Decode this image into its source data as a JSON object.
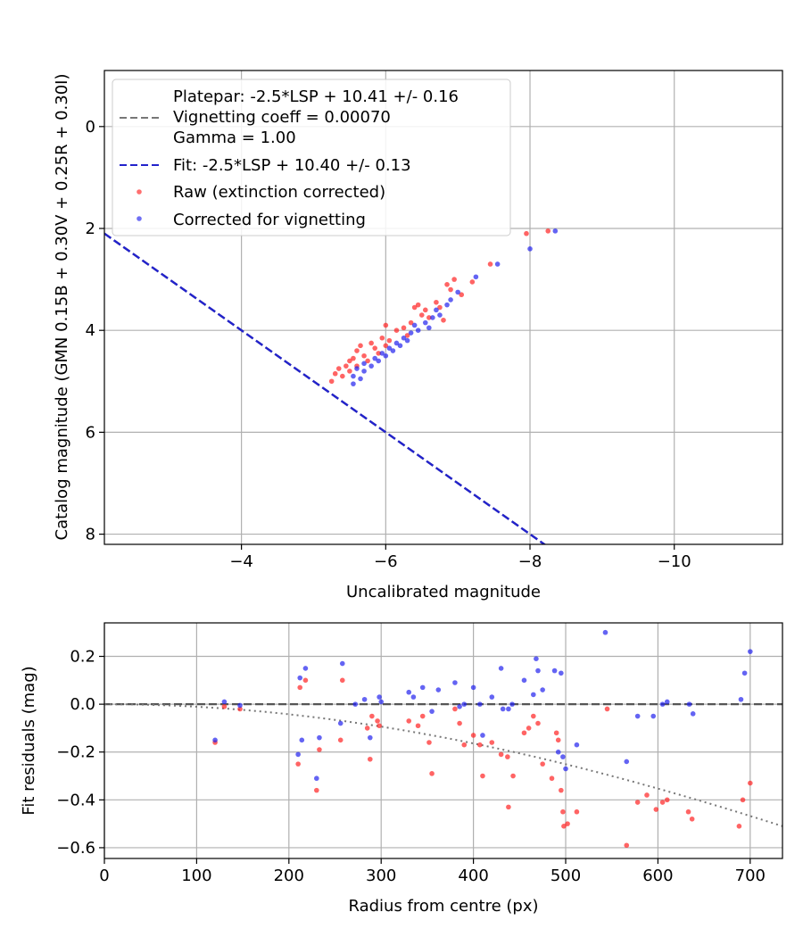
{
  "chart_data": [
    {
      "type": "scatter",
      "xlabel": "Uncalibrated magnitude",
      "ylabel": "Catalog magnitude (GMN 0.15B + 0.30V + 0.25R + 0.30I)",
      "xlim": [
        -2.1,
        -11.5
      ],
      "ylim": [
        8.2,
        -1.1
      ],
      "x_inverted": true,
      "y_inverted": true,
      "grid": true,
      "xticks": [
        -4,
        -6,
        -8,
        -10
      ],
      "xtick_labels": [
        "−4",
        "−6",
        "−8",
        "−10"
      ],
      "yticks": [
        0,
        2,
        4,
        6,
        8
      ],
      "ytick_labels": [
        "0",
        "2",
        "4",
        "6",
        "8"
      ],
      "legend_position": "top-left",
      "legend": {
        "platepar_lines": [
          "Platepar: -2.5*LSP + 10.41 +/- 0.16",
          "Vignetting coeff = 0.00070",
          "Gamma = 1.00"
        ],
        "fit": "Fit: -2.5*LSP + 10.40 +/- 0.13",
        "raw": "Raw (extinction corrected)",
        "corrected": "Corrected for vignetting"
      },
      "lines": [
        {
          "name": "Platepar",
          "slope": -1,
          "intercept": 0.0,
          "style": "dashed",
          "color": "#777777"
        },
        {
          "name": "Fit",
          "slope": -1,
          "intercept": 0.0,
          "style": "dashed",
          "color": "#2222cc"
        }
      ],
      "series": [
        {
          "name": "Raw (extinction corrected)",
          "color": "#ff2222",
          "points": [
            [
              -5.25,
              5.0
            ],
            [
              -5.3,
              4.85
            ],
            [
              -5.35,
              4.75
            ],
            [
              -5.4,
              4.9
            ],
            [
              -5.45,
              4.7
            ],
            [
              -5.5,
              4.6
            ],
            [
              -5.5,
              4.8
            ],
            [
              -5.55,
              4.55
            ],
            [
              -5.6,
              4.4
            ],
            [
              -5.6,
              4.7
            ],
            [
              -5.65,
              4.3
            ],
            [
              -5.7,
              4.5
            ],
            [
              -5.75,
              4.6
            ],
            [
              -5.8,
              4.25
            ],
            [
              -5.85,
              4.35
            ],
            [
              -5.9,
              4.45
            ],
            [
              -5.95,
              4.15
            ],
            [
              -6.0,
              4.3
            ],
            [
              -6.05,
              4.2
            ],
            [
              -6.0,
              3.9
            ],
            [
              -6.15,
              4.0
            ],
            [
              -6.25,
              3.95
            ],
            [
              -6.3,
              4.1
            ],
            [
              -6.35,
              3.85
            ],
            [
              -6.4,
              3.55
            ],
            [
              -6.45,
              3.5
            ],
            [
              -6.5,
              3.7
            ],
            [
              -6.55,
              3.6
            ],
            [
              -6.6,
              3.75
            ],
            [
              -6.7,
              3.45
            ],
            [
              -6.75,
              3.55
            ],
            [
              -6.8,
              3.8
            ],
            [
              -6.85,
              3.1
            ],
            [
              -6.9,
              3.2
            ],
            [
              -6.95,
              3.0
            ],
            [
              -7.05,
              3.3
            ],
            [
              -7.2,
              3.05
            ],
            [
              -7.45,
              2.7
            ],
            [
              -7.95,
              2.1
            ],
            [
              -8.25,
              2.05
            ]
          ]
        },
        {
          "name": "Corrected for vignetting",
          "color": "#2222ee",
          "points": [
            [
              -5.55,
              5.05
            ],
            [
              -5.55,
              4.9
            ],
            [
              -5.6,
              4.75
            ],
            [
              -5.65,
              4.95
            ],
            [
              -5.7,
              4.8
            ],
            [
              -5.7,
              4.65
            ],
            [
              -5.8,
              4.7
            ],
            [
              -5.85,
              4.55
            ],
            [
              -5.9,
              4.6
            ],
            [
              -5.95,
              4.45
            ],
            [
              -6.0,
              4.5
            ],
            [
              -6.05,
              4.35
            ],
            [
              -6.1,
              4.4
            ],
            [
              -6.15,
              4.25
            ],
            [
              -6.2,
              4.3
            ],
            [
              -6.25,
              4.15
            ],
            [
              -6.3,
              4.2
            ],
            [
              -6.35,
              4.05
            ],
            [
              -6.4,
              3.9
            ],
            [
              -6.45,
              4.0
            ],
            [
              -6.55,
              3.85
            ],
            [
              -6.6,
              3.95
            ],
            [
              -6.65,
              3.75
            ],
            [
              -6.7,
              3.6
            ],
            [
              -6.75,
              3.7
            ],
            [
              -6.85,
              3.5
            ],
            [
              -6.9,
              3.4
            ],
            [
              -7.0,
              3.25
            ],
            [
              -7.25,
              2.95
            ],
            [
              -7.55,
              2.7
            ],
            [
              -8.0,
              2.4
            ],
            [
              -8.35,
              2.05
            ]
          ]
        }
      ]
    },
    {
      "type": "scatter",
      "xlabel": "Radius from centre (px)",
      "ylabel": "Fit residuals (mag)",
      "xlim": [
        0,
        735
      ],
      "ylim": [
        -0.645,
        0.34
      ],
      "grid": true,
      "xticks": [
        0,
        100,
        200,
        300,
        400,
        500,
        600,
        700
      ],
      "xtick_labels": [
        "0",
        "100",
        "200",
        "300",
        "400",
        "500",
        "600",
        "700"
      ],
      "yticks": [
        0.2,
        0.0,
        -0.2,
        -0.4,
        -0.6
      ],
      "ytick_labels": [
        "0.2",
        "0.0",
        "−0.2",
        "−0.4",
        "−0.6"
      ],
      "reference_line": {
        "y": 0.0,
        "style": "dashed",
        "color": "#555555"
      },
      "vignetting_curve": {
        "coeff": 0.0007,
        "style": "dotted",
        "color": "#777777"
      },
      "series": [
        {
          "name": "Raw (extinction corrected)",
          "color": "#ff2222",
          "points": [
            [
              120,
              -0.16
            ],
            [
              130,
              -0.01
            ],
            [
              147,
              -0.02
            ],
            [
              210,
              -0.25
            ],
            [
              212,
              0.07
            ],
            [
              218,
              0.1
            ],
            [
              233,
              -0.19
            ],
            [
              230,
              -0.36
            ],
            [
              256,
              -0.15
            ],
            [
              258,
              0.1
            ],
            [
              285,
              -0.1
            ],
            [
              288,
              -0.23
            ],
            [
              290,
              -0.05
            ],
            [
              296,
              -0.07
            ],
            [
              298,
              -0.09
            ],
            [
              330,
              -0.07
            ],
            [
              340,
              -0.09
            ],
            [
              345,
              -0.05
            ],
            [
              352,
              -0.16
            ],
            [
              355,
              -0.29
            ],
            [
              380,
              -0.02
            ],
            [
              385,
              -0.08
            ],
            [
              390,
              -0.17
            ],
            [
              400,
              -0.13
            ],
            [
              407,
              -0.17
            ],
            [
              410,
              -0.3
            ],
            [
              420,
              -0.16
            ],
            [
              430,
              -0.21
            ],
            [
              437,
              -0.22
            ],
            [
              438,
              -0.43
            ],
            [
              443,
              -0.3
            ],
            [
              455,
              -0.12
            ],
            [
              460,
              -0.1
            ],
            [
              465,
              -0.05
            ],
            [
              470,
              -0.08
            ],
            [
              475,
              -0.25
            ],
            [
              485,
              -0.31
            ],
            [
              490,
              -0.12
            ],
            [
              492,
              -0.15
            ],
            [
              495,
              -0.36
            ],
            [
              497,
              -0.45
            ],
            [
              498,
              -0.51
            ],
            [
              502,
              -0.5
            ],
            [
              512,
              -0.45
            ],
            [
              545,
              -0.02
            ],
            [
              566,
              -0.59
            ],
            [
              578,
              -0.41
            ],
            [
              588,
              -0.38
            ],
            [
              598,
              -0.44
            ],
            [
              605,
              -0.41
            ],
            [
              610,
              -0.4
            ],
            [
              633,
              -0.45
            ],
            [
              637,
              -0.48
            ],
            [
              688,
              -0.51
            ],
            [
              692,
              -0.4
            ],
            [
              700,
              -0.33
            ]
          ]
        },
        {
          "name": "Corrected for vignetting",
          "color": "#2222ee",
          "points": [
            [
              120,
              -0.15
            ],
            [
              130,
              0.01
            ],
            [
              147,
              -0.005
            ],
            [
              210,
              -0.21
            ],
            [
              212,
              0.11
            ],
            [
              214,
              -0.15
            ],
            [
              218,
              0.15
            ],
            [
              230,
              -0.31
            ],
            [
              233,
              -0.14
            ],
            [
              256,
              -0.08
            ],
            [
              258,
              0.17
            ],
            [
              272,
              0.0
            ],
            [
              282,
              0.02
            ],
            [
              288,
              -0.14
            ],
            [
              298,
              0.03
            ],
            [
              300,
              0.01
            ],
            [
              330,
              0.05
            ],
            [
              335,
              0.03
            ],
            [
              345,
              0.07
            ],
            [
              355,
              -0.03
            ],
            [
              362,
              0.06
            ],
            [
              380,
              0.09
            ],
            [
              385,
              -0.01
            ],
            [
              390,
              0.0
            ],
            [
              400,
              0.07
            ],
            [
              407,
              0.0
            ],
            [
              410,
              -0.13
            ],
            [
              420,
              0.03
            ],
            [
              430,
              0.15
            ],
            [
              432,
              -0.02
            ],
            [
              438,
              -0.02
            ],
            [
              442,
              0.0
            ],
            [
              455,
              0.1
            ],
            [
              465,
              0.04
            ],
            [
              468,
              0.19
            ],
            [
              470,
              0.14
            ],
            [
              475,
              0.06
            ],
            [
              488,
              0.14
            ],
            [
              492,
              -0.2
            ],
            [
              495,
              0.13
            ],
            [
              497,
              -0.22
            ],
            [
              500,
              -0.27
            ],
            [
              512,
              -0.17
            ],
            [
              543,
              0.3
            ],
            [
              566,
              -0.24
            ],
            [
              578,
              -0.05
            ],
            [
              595,
              -0.05
            ],
            [
              605,
              0.0
            ],
            [
              610,
              0.01
            ],
            [
              634,
              0.0
            ],
            [
              638,
              -0.04
            ],
            [
              690,
              0.02
            ],
            [
              694,
              0.13
            ],
            [
              700,
              0.22
            ]
          ]
        }
      ]
    }
  ]
}
